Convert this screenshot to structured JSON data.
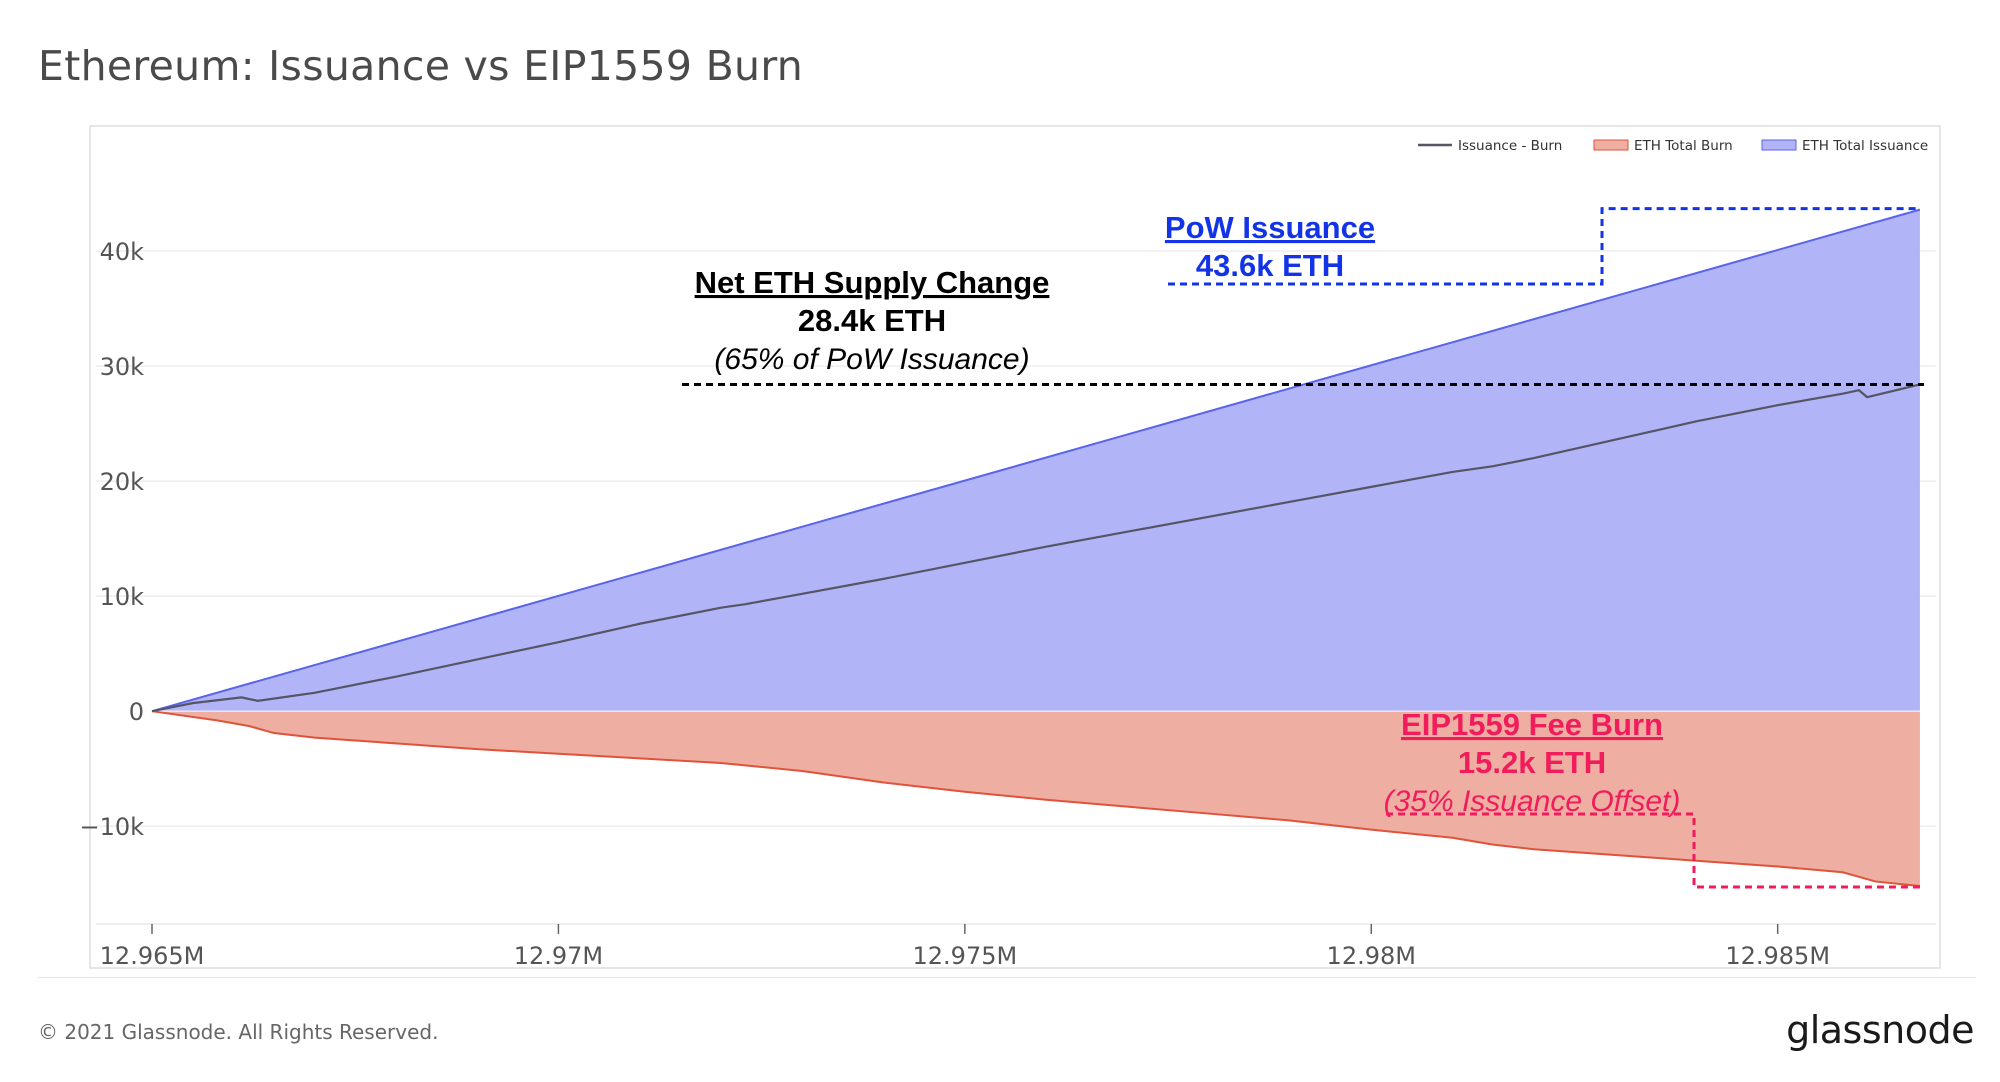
{
  "title": "Ethereum: Issuance vs EIP1559 Burn",
  "footer": {
    "copyright": "© 2021 Glassnode. All Rights Reserved.",
    "brand": "glassnode"
  },
  "colors": {
    "issuance_fill": "#b1b5f7",
    "issuance_line": "#5a63ec",
    "burn_fill": "#eeaea2",
    "burn_line": "#e0533b",
    "net_line": "#555566",
    "annotation_issuance": "#1334e6",
    "annotation_net": "#000000",
    "annotation_burn": "#f01c5c"
  },
  "chart_data": {
    "type": "area",
    "title": "Ethereum: Issuance vs EIP1559 Burn",
    "xlabel": "",
    "ylabel": "",
    "xlim": [
      12965000,
      12986800
    ],
    "ylim": [
      -18500,
      50000
    ],
    "x_ticks": [
      12965000,
      12970000,
      12975000,
      12980000,
      12985000
    ],
    "x_tick_labels": [
      "12.965M",
      "12.97M",
      "12.975M",
      "12.98M",
      "12.985M"
    ],
    "y_ticks": [
      -10000,
      0,
      10000,
      20000,
      30000,
      40000
    ],
    "y_tick_labels": [
      "−10k",
      "0",
      "10k",
      "20k",
      "30k",
      "40k"
    ],
    "grid": "horizontal",
    "legend_position": "top-right",
    "legend": [
      "Issuance - Burn",
      "ETH Total Burn",
      "ETH Total Issuance"
    ],
    "series": [
      {
        "name": "ETH Total Issuance",
        "style": "area",
        "points": [
          [
            12965000,
            0
          ],
          [
            12986750,
            43600
          ]
        ]
      },
      {
        "name": "ETH Total Burn",
        "style": "area",
        "points": [
          [
            12965000,
            0
          ],
          [
            12965800,
            -800
          ],
          [
            12966200,
            -1300
          ],
          [
            12966500,
            -1900
          ],
          [
            12967000,
            -2300
          ],
          [
            12968000,
            -2800
          ],
          [
            12969000,
            -3300
          ],
          [
            12970000,
            -3700
          ],
          [
            12971000,
            -4100
          ],
          [
            12972000,
            -4500
          ],
          [
            12973000,
            -5200
          ],
          [
            12974000,
            -6200
          ],
          [
            12975000,
            -7000
          ],
          [
            12976000,
            -7700
          ],
          [
            12977000,
            -8300
          ],
          [
            12978000,
            -8900
          ],
          [
            12979000,
            -9500
          ],
          [
            12980000,
            -10300
          ],
          [
            12981000,
            -11000
          ],
          [
            12981500,
            -11600
          ],
          [
            12982000,
            -12000
          ],
          [
            12983000,
            -12500
          ],
          [
            12984000,
            -13000
          ],
          [
            12985000,
            -13500
          ],
          [
            12985800,
            -14000
          ],
          [
            12986000,
            -14400
          ],
          [
            12986200,
            -14800
          ],
          [
            12986750,
            -15200
          ]
        ]
      },
      {
        "name": "Issuance - Burn",
        "style": "line",
        "points": [
          [
            12965000,
            0
          ],
          [
            12965500,
            700
          ],
          [
            12966100,
            1200
          ],
          [
            12966300,
            900
          ],
          [
            12967000,
            1600
          ],
          [
            12968000,
            3000
          ],
          [
            12969000,
            4500
          ],
          [
            12970000,
            6000
          ],
          [
            12971000,
            7600
          ],
          [
            12972000,
            9000
          ],
          [
            12972300,
            9300
          ],
          [
            12973000,
            10200
          ],
          [
            12974000,
            11500
          ],
          [
            12975000,
            12900
          ],
          [
            12976000,
            14300
          ],
          [
            12977000,
            15600
          ],
          [
            12978000,
            16900
          ],
          [
            12979000,
            18200
          ],
          [
            12980000,
            19500
          ],
          [
            12981000,
            20800
          ],
          [
            12981500,
            21300
          ],
          [
            12982000,
            22000
          ],
          [
            12983000,
            23600
          ],
          [
            12984000,
            25200
          ],
          [
            12985000,
            26600
          ],
          [
            12985800,
            27600
          ],
          [
            12986000,
            27900
          ],
          [
            12986100,
            27300
          ],
          [
            12986750,
            28400
          ]
        ]
      }
    ],
    "annotations": [
      {
        "title": "PoW Issuance",
        "value": "43.6k ETH",
        "note": ""
      },
      {
        "title": "Net ETH Supply Change",
        "value": "28.4k ETH",
        "note": "(65% of PoW Issuance)"
      },
      {
        "title": "EIP1559 Fee Burn",
        "value": "15.2k ETH",
        "note": "(35% Issuance Offset)"
      }
    ]
  }
}
